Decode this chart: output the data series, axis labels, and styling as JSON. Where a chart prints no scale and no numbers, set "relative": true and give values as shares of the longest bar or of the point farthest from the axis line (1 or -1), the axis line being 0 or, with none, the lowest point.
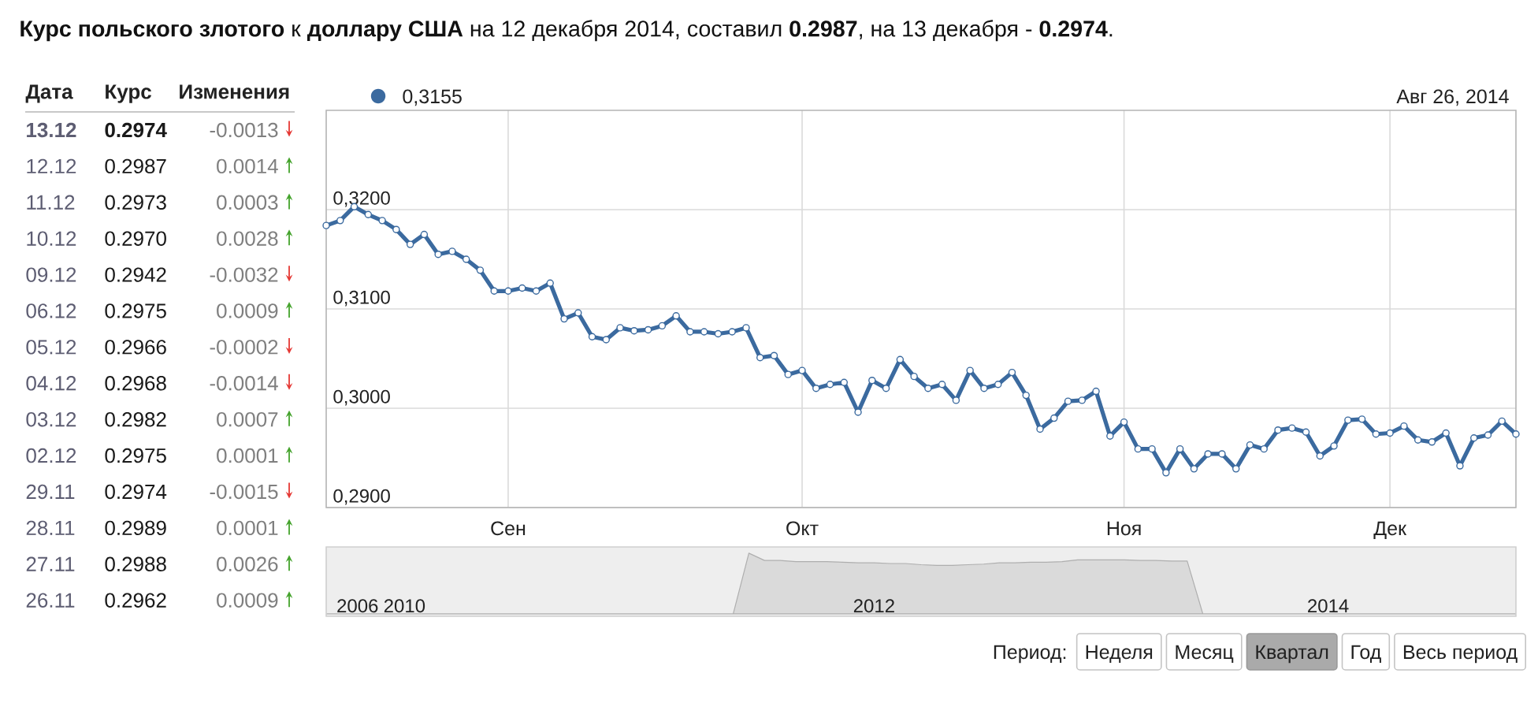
{
  "chart_data": [
    {
      "type": "other",
      "title": "**Курс польского злотого** к **доллару США** на 12 декабря 2014, составил **0.2987**, на 13 декабря - **0.2974**.",
      "xlabel": "Дата",
      "data_labels": true,
      "categories": [
        "13.12",
        "12.12",
        "11.12",
        "10.12",
        "09.12",
        "06.12",
        "05.12",
        "04.12",
        "03.12",
        "02.12",
        "29.11",
        "28.11",
        "27.11",
        "26.11"
      ],
      "series": [
        {
          "name": "Курс",
          "values": [
            0.2974,
            0.2987,
            0.2973,
            0.297,
            0.2942,
            0.2975,
            0.2966,
            0.2968,
            0.2982,
            0.2975,
            0.2974,
            0.2989,
            0.2988,
            0.2962
          ],
          "value_labels": [
            "0.2974",
            "0.2987",
            "0.2973",
            "0.2970",
            "0.2942",
            "0.2975",
            "0.2966",
            "0.2968",
            "0.2982",
            "0.2975",
            "0.2974",
            "0.2989",
            "0.2988",
            "0.2962"
          ]
        },
        {
          "name": "Изменения",
          "values": [
            -0.0013,
            0.0014,
            0.0003,
            0.0028,
            -0.0032,
            0.0009,
            -0.0002,
            -0.0014,
            0.0007,
            0.0001,
            -0.0015,
            0.0001,
            0.0026,
            0.0009
          ],
          "colors": [
            "#e53935",
            "#44a32c",
            "#44a32c",
            "#44a32c",
            "#e53935",
            "#44a32c",
            "#e53935",
            "#e53935",
            "#44a32c",
            "#44a32c",
            "#e53935",
            "#44a32c",
            "#44a32c",
            "#44a32c"
          ]
        }
      ]
    },
    {
      "type": "line",
      "color": "#3b6a9f",
      "marker": "circle",
      "grid": true,
      "categories": [
        null,
        null,
        null,
        null,
        null,
        null,
        null,
        null,
        null,
        null,
        null,
        null,
        null,
        "Сен",
        null,
        null,
        null,
        null,
        null,
        null,
        null,
        null,
        null,
        null,
        null,
        null,
        null,
        null,
        null,
        null,
        null,
        null,
        null,
        null,
        "Окт",
        null,
        null,
        null,
        null,
        null,
        null,
        null,
        null,
        null,
        null,
        null,
        null,
        null,
        null,
        null,
        null,
        null,
        null,
        null,
        null,
        null,
        null,
        "Ноя",
        null,
        null,
        null,
        null,
        null,
        null,
        null,
        null,
        null,
        null,
        null,
        null,
        null,
        null,
        null,
        null,
        null,
        null,
        "Дек",
        null,
        null,
        null,
        null,
        null,
        null,
        null,
        null,
        null
      ],
      "values": [
        0.3184,
        0.3189,
        0.3203,
        0.3195,
        0.3189,
        0.318,
        0.3165,
        0.3175,
        0.3155,
        0.3158,
        0.315,
        0.3139,
        0.3118,
        0.3118,
        0.3121,
        0.3118,
        0.3126,
        0.309,
        0.3096,
        0.3072,
        0.3069,
        0.3081,
        0.3078,
        0.3079,
        0.3083,
        0.3093,
        0.3077,
        0.3077,
        0.3075,
        0.3077,
        0.3081,
        0.3051,
        0.3053,
        0.3034,
        0.3038,
        0.302,
        0.3024,
        0.3026,
        0.2996,
        0.3028,
        0.302,
        0.3049,
        0.3032,
        0.302,
        0.3024,
        0.3008,
        0.3038,
        0.302,
        0.3024,
        0.3036,
        0.3013,
        0.2979,
        0.299,
        0.3007,
        0.3008,
        0.3017,
        0.2972,
        0.2986,
        0.2959,
        0.2959,
        0.2935,
        0.2959,
        0.2939,
        0.2954,
        0.2954,
        0.2939,
        0.2963,
        0.2959,
        0.2978,
        0.298,
        0.2976,
        0.2952,
        0.2962,
        0.2988,
        0.2989,
        0.2974,
        0.2975,
        0.2982,
        0.2968,
        0.2966,
        0.2975,
        0.2942,
        0.297,
        0.2973,
        0.2987,
        0.2974
      ],
      "ylim": [
        0.29,
        0.33
      ],
      "yticks": [
        {
          "value": 0.29,
          "label": "0,2900"
        },
        {
          "value": 0.3,
          "label": "0,3000"
        },
        {
          "value": 0.31,
          "label": "0,3100"
        },
        {
          "value": 0.32,
          "label": "0,3200"
        }
      ],
      "annotations": [
        "0,3155",
        "Авг 26, 2014",
        "Период:",
        "Неделя",
        "Месяц",
        "Квартал",
        "Год",
        "Весь период"
      ]
    },
    {
      "type": "area",
      "relative": true,
      "color": "#dadada",
      "categories": [
        null,
        null,
        "2006",
        null,
        null,
        "2010",
        null,
        null,
        null,
        null,
        null,
        null,
        null,
        null,
        null,
        null,
        null,
        null,
        null,
        null,
        null,
        null,
        null,
        null,
        null,
        null,
        null,
        null,
        null,
        null,
        null,
        null,
        null,
        null,
        null,
        "2012",
        null,
        null,
        null,
        null,
        null,
        null,
        null,
        null,
        null,
        null,
        null,
        null,
        null,
        null,
        null,
        null,
        null,
        null,
        null,
        null,
        null,
        null,
        null,
        null,
        null,
        null,
        null,
        null,
        "2014",
        null,
        null,
        null,
        null,
        null,
        null,
        null,
        null,
        null,
        null,
        null,
        null
      ],
      "values": [
        0,
        0,
        0,
        0,
        0,
        0,
        0,
        0,
        0,
        0,
        0,
        0,
        0,
        0,
        0,
        0,
        0,
        0,
        0,
        0,
        0,
        0,
        0,
        0,
        0,
        0,
        0,
        1.0,
        0.88,
        0.88,
        0.86,
        0.86,
        0.86,
        0.85,
        0.84,
        0.84,
        0.83,
        0.83,
        0.81,
        0.8,
        0.8,
        0.81,
        0.82,
        0.84,
        0.84,
        0.85,
        0.85,
        0.86,
        0.89,
        0.89,
        0.89,
        0.89,
        0.88,
        0.88,
        0.87,
        0.87,
        0,
        0,
        0,
        0,
        0,
        0,
        0,
        0,
        0,
        0,
        0,
        0,
        0,
        0,
        0,
        0,
        0,
        0,
        0,
        0,
        0
      ]
    }
  ]
}
